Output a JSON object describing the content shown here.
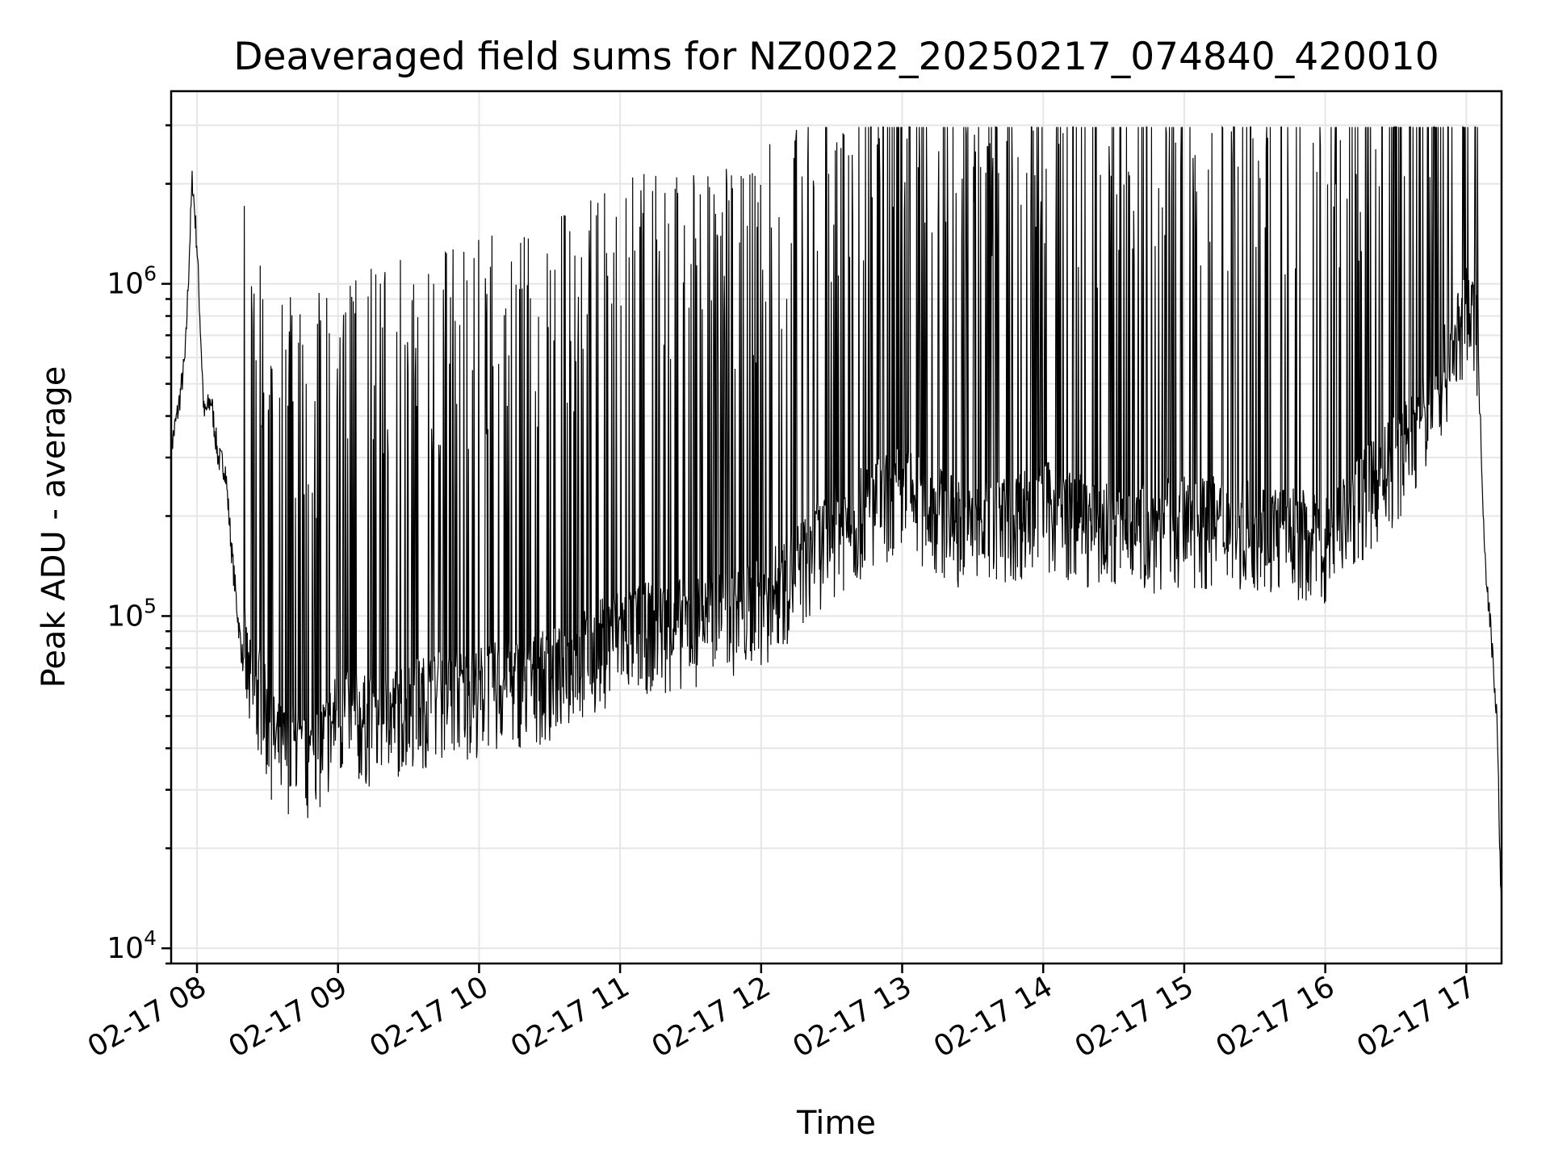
{
  "chart_data": {
    "type": "line",
    "title": "Deaveraged field sums for NZ0022_20250217_074840_420010",
    "xlabel": "Time",
    "ylabel": "Peak ADU - average",
    "yscale": "log",
    "grid": true,
    "x_ticks": [
      "02-17 08",
      "02-17 09",
      "02-17 10",
      "02-17 11",
      "02-17 12",
      "02-17 13",
      "02-17 14",
      "02-17 15",
      "02-17 16",
      "02-17 17"
    ],
    "x_range": [
      "2025-02-17 07:49",
      "2025-02-17 17:15"
    ],
    "y_ticks": [
      {
        "base": "10",
        "exp": "4",
        "value": 10000
      },
      {
        "base": "10",
        "exp": "5",
        "value": 100000
      },
      {
        "base": "10",
        "exp": "6",
        "value": 1000000
      }
    ],
    "ylim": [
      9000,
      3800000
    ],
    "line_color": "#000000",
    "series": [
      {
        "x": [
          "2025-02-17 07:49",
          "2025-02-17 07:52",
          "2025-02-17 07:55",
          "2025-02-17 07:58",
          "2025-02-17 08:00",
          "2025-02-17 08:03",
          "2025-02-17 08:06",
          "2025-02-17 08:09",
          "2025-02-17 08:12",
          "2025-02-17 08:15",
          "2025-02-17 08:18",
          "2025-02-17 08:21",
          "2025-02-17 08:24",
          "2025-02-17 08:27",
          "2025-02-17 08:30",
          "2025-02-17 08:33",
          "2025-02-17 08:36",
          "2025-02-17 08:40",
          "2025-02-17 08:45",
          "2025-02-17 08:50",
          "2025-02-17 09:00",
          "2025-02-17 09:15",
          "2025-02-17 09:30",
          "2025-02-17 09:45",
          "2025-02-17 10:00",
          "2025-02-17 10:30",
          "2025-02-17 11:00",
          "2025-02-17 11:30",
          "2025-02-17 12:00",
          "2025-02-17 12:30",
          "2025-02-17 13:00",
          "2025-02-17 13:30",
          "2025-02-17 14:00",
          "2025-02-17 14:30",
          "2025-02-17 15:00",
          "2025-02-17 15:30",
          "2025-02-17 16:00",
          "2025-02-17 16:30",
          "2025-02-17 16:45",
          "2025-02-17 17:00",
          "2025-02-17 17:05",
          "2025-02-17 17:08",
          "2025-02-17 17:11",
          "2025-02-17 17:13",
          "2025-02-17 17:15"
        ],
        "y": [
          320000,
          420000,
          600000,
          2100000,
          1300000,
          400000,
          450000,
          300000,
          280000,
          150000,
          90000,
          60000,
          45000,
          50000,
          40000,
          35000,
          33000,
          34000,
          30000,
          32000,
          42000,
          40000,
          45000,
          48000,
          50000,
          55000,
          75000,
          80000,
          90000,
          150000,
          200000,
          150000,
          180000,
          150000,
          160000,
          160000,
          140000,
          250000,
          350000,
          700000,
          600000,
          150000,
          80000,
          50000,
          12000
        ]
      }
    ]
  }
}
